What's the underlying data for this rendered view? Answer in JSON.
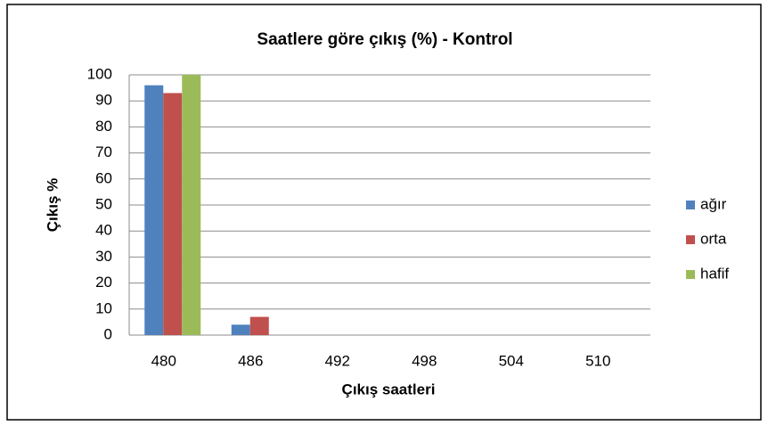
{
  "chart_data": {
    "type": "bar",
    "title": "Saatlere göre çıkış (%) - Kontrol",
    "x_label": "Çıkış saatleri",
    "y_label": "Çıkış %",
    "categories": [
      "480",
      "486",
      "492",
      "498",
      "504",
      "510"
    ],
    "series": [
      {
        "name": "ağır",
        "color": "#4f81bd",
        "values": [
          96,
          4,
          0,
          0,
          0,
          0
        ]
      },
      {
        "name": "orta",
        "color": "#c0504d",
        "values": [
          93,
          7,
          0,
          0,
          0,
          0
        ]
      },
      {
        "name": "hafif",
        "color": "#9bbb59",
        "values": [
          100,
          0,
          0,
          0,
          0,
          0
        ]
      }
    ],
    "ylim": [
      0,
      100
    ],
    "yticks": [
      0,
      10,
      20,
      30,
      40,
      50,
      60,
      70,
      80,
      90,
      100
    ],
    "grid": true,
    "legend": "right"
  }
}
